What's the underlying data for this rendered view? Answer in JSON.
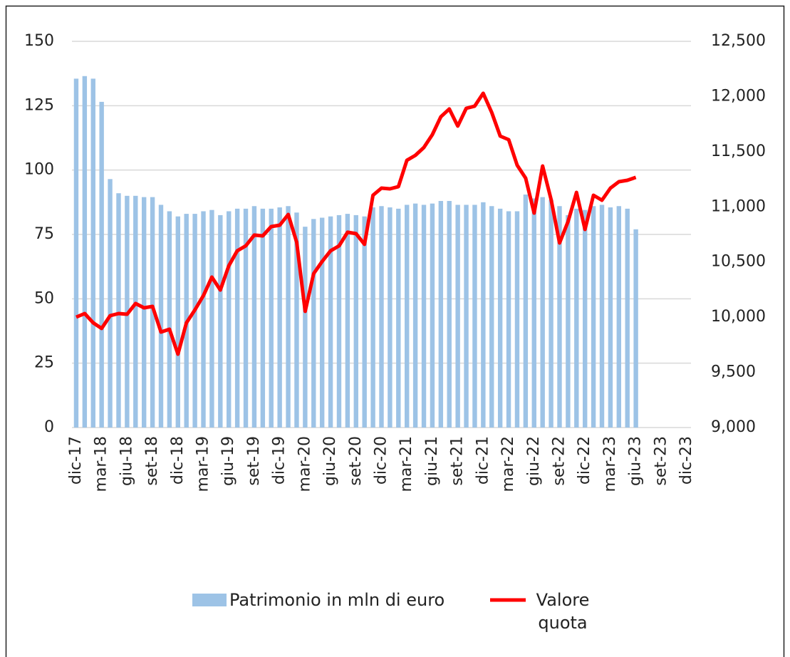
{
  "chart_data": {
    "type": "bar_line",
    "categories": [
      "dic-17",
      null,
      null,
      "mar-18",
      null,
      null,
      "giu-18",
      null,
      null,
      "set-18",
      null,
      null,
      "dic-18",
      null,
      null,
      "mar-19",
      null,
      null,
      "giu-19",
      null,
      null,
      "set-19",
      null,
      null,
      "dic-19",
      null,
      null,
      "mar-20",
      null,
      null,
      "giu-20",
      null,
      null,
      "set-20",
      null,
      null,
      "dic-20",
      null,
      null,
      "mar-21",
      null,
      null,
      "giu-21",
      null,
      null,
      "set-21",
      null,
      null,
      "dic-21",
      null,
      null,
      "mar-22",
      null,
      null,
      "giu-22",
      null,
      null,
      "set-22",
      null,
      null,
      "dic-22",
      null,
      null,
      "mar-23",
      null,
      null,
      "giu-23",
      null,
      null,
      "set-23",
      null,
      null,
      "dic-23"
    ],
    "series": [
      {
        "name": "Patrimonio in mln di euro",
        "color": "#9dc3e6",
        "kind": "bar",
        "axis": "y",
        "values": [
          135.5,
          136.5,
          135.5,
          126.5,
          96.5,
          91,
          90,
          90,
          89.5,
          89.5,
          86.5,
          84,
          82,
          83,
          83,
          84,
          84.5,
          82.5,
          84,
          85,
          85,
          86,
          85,
          85,
          85.5,
          86,
          83.5,
          78,
          81,
          81.5,
          82,
          82.5,
          83,
          82.5,
          82,
          85.5,
          86,
          85.5,
          85,
          86.5,
          87,
          86.5,
          87,
          88,
          88,
          86.5,
          86.5,
          86.5,
          87.5,
          86,
          85,
          84,
          84,
          90.5,
          89,
          89.5,
          88.5,
          86,
          82.5,
          85,
          84.5,
          86,
          86.5,
          85.5,
          86,
          85,
          77,
          null,
          null,
          null,
          null,
          null,
          null
        ]
      },
      {
        "name": "Valore quota",
        "color": "#ff0000",
        "kind": "line",
        "axis": "y2",
        "values": [
          10001,
          10033,
          9949,
          9898,
          10014,
          10033,
          10027,
          10124,
          10085,
          10098,
          9865,
          9891,
          9665,
          9949,
          10066,
          10195,
          10363,
          10246,
          10466,
          10602,
          10647,
          10744,
          10737,
          10821,
          10834,
          10931,
          10679,
          10053,
          10395,
          10505,
          10602,
          10647,
          10770,
          10757,
          10660,
          11105,
          11170,
          11163,
          11183,
          11422,
          11467,
          11538,
          11654,
          11816,
          11887,
          11732,
          11893,
          11913,
          12029,
          11855,
          11641,
          11609,
          11377,
          11260,
          10944,
          11370,
          11067,
          10673,
          10866,
          11131,
          10795,
          11105,
          11060,
          11170,
          11228,
          11241,
          11267,
          null,
          null,
          null,
          null,
          null,
          null
        ]
      }
    ],
    "ylim": [
      0,
      150
    ],
    "yticks": [
      0,
      25,
      50,
      75,
      100,
      125,
      150
    ],
    "y2lim": [
      9000,
      12500
    ],
    "y2ticks": [
      {
        "value": 9000,
        "label": "9,000"
      },
      {
        "value": 9500,
        "label": "9,500"
      },
      {
        "value": 10000,
        "label": "10,000"
      },
      {
        "value": 10500,
        "label": "10,500"
      },
      {
        "value": 11000,
        "label": "11,000"
      },
      {
        "value": 11500,
        "label": "11,500"
      },
      {
        "value": 12000,
        "label": "12,000"
      },
      {
        "value": 12500,
        "label": "12,500"
      }
    ],
    "grid": true,
    "legend": "bottom"
  }
}
